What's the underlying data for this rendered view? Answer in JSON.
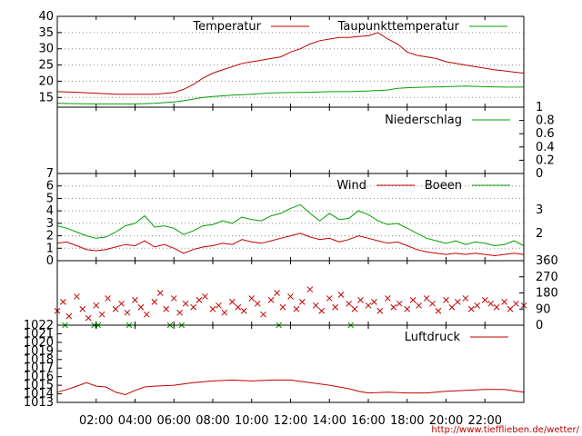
{
  "chart_data": [
    {
      "type": "line",
      "id": "temperature",
      "title": "",
      "ylim": [
        12,
        40
      ],
      "yticks": [
        "15",
        "20",
        "25",
        "30",
        "35",
        "40"
      ],
      "ytick_values": [
        15,
        20,
        25,
        30,
        35,
        40
      ],
      "series": [
        {
          "name": "Temperatur",
          "color": "#c00000",
          "x": [
            0,
            1,
            2,
            3,
            4,
            5,
            6,
            6.5,
            7,
            7.5,
            8,
            8.5,
            9,
            9.5,
            10,
            10.5,
            11,
            11.5,
            12,
            12.5,
            13,
            13.5,
            14,
            14.5,
            15,
            15.5,
            16,
            16.5,
            17,
            17.5,
            18,
            18.5,
            19,
            19.5,
            20,
            20.5,
            21,
            21.5,
            22,
            22.5,
            23,
            23.5,
            24
          ],
          "y": [
            16.8,
            16.6,
            16.3,
            16,
            16,
            16,
            16.5,
            17.5,
            19,
            21,
            22.5,
            23.5,
            24.5,
            25.5,
            26,
            26.5,
            27,
            27.5,
            29,
            30,
            31.5,
            32.5,
            33,
            33.5,
            33.5,
            33.8,
            34,
            35,
            33,
            31.5,
            29,
            28,
            27.5,
            27,
            26,
            25.5,
            25,
            24.5,
            24,
            23.5,
            23.2,
            22.8,
            22.5
          ]
        },
        {
          "name": "Taupunkttemperatur",
          "color": "#00a000",
          "x": [
            0,
            1,
            2,
            3,
            4,
            5,
            6,
            6.5,
            7,
            7.5,
            8,
            9,
            10,
            11,
            12,
            13,
            14,
            15,
            16,
            17,
            17.5,
            18,
            19,
            20,
            21,
            22,
            23,
            24
          ],
          "y": [
            13.2,
            13.1,
            13,
            13,
            13,
            13.2,
            13.6,
            14,
            14.5,
            15,
            15.3,
            15.7,
            16,
            16.4,
            16.5,
            16.6,
            16.8,
            16.8,
            17,
            17.3,
            17.8,
            18,
            18.2,
            18.3,
            18.5,
            18.3,
            18.2,
            18.2
          ]
        }
      ]
    },
    {
      "type": "line",
      "id": "precipitation",
      "title": "",
      "ylim": [
        0,
        1
      ],
      "yticks": [
        "0",
        "0.2",
        "0.4",
        "0.6",
        "0.8",
        "1"
      ],
      "ytick_values": [
        0,
        0.2,
        0.4,
        0.6,
        0.8,
        1
      ],
      "series": [
        {
          "name": "Niederschlag",
          "color": "#00a000",
          "x": [
            0,
            24
          ],
          "y": [
            0,
            0
          ]
        }
      ]
    },
    {
      "type": "line",
      "id": "wind",
      "title": "",
      "ylim": [
        0,
        7
      ],
      "yticks": [
        "0",
        "1",
        "2",
        "3",
        "4",
        "5",
        "6",
        "7"
      ],
      "ytick_values": [
        0,
        1,
        2,
        3,
        4,
        5,
        6,
        7
      ],
      "right_labels": [
        "2",
        "3"
      ],
      "right_label_values": [
        2.2,
        4.1
      ],
      "series": [
        {
          "name": "Wind",
          "color": "#c00000",
          "x": [
            0,
            0.5,
            1,
            1.5,
            2,
            2.5,
            3,
            3.5,
            4,
            4.5,
            5,
            5.5,
            6,
            6.5,
            7,
            7.5,
            8,
            8.5,
            9,
            9.5,
            10,
            10.5,
            11,
            11.5,
            12,
            12.5,
            13,
            13.5,
            14,
            14.5,
            15,
            15.5,
            16,
            16.5,
            17,
            17.5,
            18,
            18.5,
            19,
            19.5,
            20,
            20.5,
            21,
            21.5,
            22,
            22.5,
            23,
            23.5,
            24
          ],
          "y": [
            1.4,
            1.5,
            1.2,
            0.9,
            0.8,
            0.9,
            1.1,
            1.3,
            1.2,
            1.6,
            1.1,
            1.3,
            1.0,
            0.6,
            0.9,
            1.1,
            1.2,
            1.4,
            1.3,
            1.7,
            1.5,
            1.4,
            1.6,
            1.8,
            2.0,
            2.2,
            1.9,
            1.7,
            1.8,
            1.5,
            1.7,
            2.0,
            1.8,
            1.6,
            1.4,
            1.5,
            1.2,
            0.9,
            0.7,
            0.6,
            0.5,
            0.6,
            0.5,
            0.6,
            0.5,
            0.4,
            0.5,
            0.6,
            0.5
          ]
        },
        {
          "name": "Boeen",
          "color": "#00a000",
          "x": [
            0,
            0.5,
            1,
            1.5,
            2,
            2.5,
            3,
            3.5,
            4,
            4.5,
            5,
            5.5,
            6,
            6.5,
            7,
            7.5,
            8,
            8.5,
            9,
            9.5,
            10,
            10.5,
            11,
            11.5,
            12,
            12.5,
            13,
            13.5,
            14,
            14.5,
            15,
            15.5,
            16,
            16.5,
            17,
            17.5,
            18,
            18.5,
            19,
            19.5,
            20,
            20.5,
            21,
            21.5,
            22,
            22.5,
            23,
            23.5,
            24
          ],
          "y": [
            2.8,
            2.6,
            2.3,
            2.0,
            1.8,
            1.9,
            2.3,
            2.8,
            3.0,
            3.6,
            2.7,
            2.8,
            2.6,
            2.1,
            2.4,
            2.8,
            2.9,
            3.2,
            3.0,
            3.5,
            3.3,
            3.2,
            3.6,
            3.8,
            4.2,
            4.5,
            3.8,
            3.2,
            3.8,
            3.3,
            3.4,
            4.0,
            3.7,
            3.2,
            2.9,
            3.0,
            2.6,
            2.2,
            1.8,
            1.6,
            1.4,
            1.6,
            1.3,
            1.5,
            1.4,
            1.2,
            1.3,
            1.6,
            1.2
          ]
        }
      ]
    },
    {
      "type": "scatter",
      "id": "wind-direction",
      "title": "",
      "ylim": [
        0,
        360
      ],
      "yticks": [
        "0",
        "90",
        "180",
        "270",
        "360"
      ],
      "ytick_values": [
        0,
        90,
        180,
        270,
        360
      ],
      "series": [
        {
          "name": "",
          "color": "#c00000",
          "x": [
            0,
            0.3,
            0.6,
            1,
            1.3,
            1.6,
            2,
            2.3,
            2.6,
            3,
            3.3,
            3.6,
            4,
            4.3,
            4.6,
            5,
            5.3,
            5.6,
            6,
            6.3,
            6.6,
            7,
            7.3,
            7.6,
            8,
            8.3,
            8.6,
            9,
            9.3,
            9.6,
            10,
            10.3,
            10.6,
            11,
            11.3,
            11.6,
            12,
            12.3,
            12.6,
            13,
            13.3,
            13.6,
            14,
            14.3,
            14.6,
            15,
            15.3,
            15.6,
            16,
            16.3,
            16.6,
            17,
            17.3,
            17.6,
            18,
            18.3,
            18.6,
            19,
            19.3,
            19.6,
            20,
            20.3,
            20.6,
            21,
            21.3,
            21.6,
            22,
            22.3,
            22.6,
            23,
            23.3,
            23.6,
            24
          ],
          "y": [
            80,
            130,
            50,
            160,
            90,
            40,
            110,
            60,
            150,
            90,
            120,
            70,
            140,
            100,
            60,
            130,
            180,
            90,
            150,
            70,
            120,
            100,
            140,
            160,
            90,
            110,
            70,
            130,
            100,
            80,
            150,
            120,
            60,
            140,
            180,
            100,
            160,
            90,
            130,
            200,
            110,
            80,
            150,
            100,
            170,
            120,
            90,
            140,
            110,
            130,
            80,
            150,
            100,
            120,
            90,
            140,
            110,
            150,
            120,
            80,
            140,
            100,
            130,
            150,
            90,
            110,
            140,
            120,
            100,
            130,
            90,
            120,
            110
          ]
        },
        {
          "name": "",
          "color": "#00a000",
          "x": [
            0.4,
            1.9,
            2.1,
            3.7,
            5.8,
            6.4,
            11.4,
            15.1
          ],
          "y": [
            0,
            0,
            0,
            0,
            0,
            0,
            0,
            0
          ]
        }
      ]
    },
    {
      "type": "line",
      "id": "pressure",
      "title": "",
      "ylim": [
        1013,
        1022
      ],
      "yticks": [
        "1013",
        "1014",
        "1015",
        "1016",
        "1017",
        "1018",
        "1019",
        "1020",
        "1021",
        "1022"
      ],
      "ytick_values": [
        1013,
        1014,
        1015,
        1016,
        1017,
        1018,
        1019,
        1020,
        1021,
        1022
      ],
      "series": [
        {
          "name": "Luftdruck",
          "color": "#c00000",
          "x": [
            0,
            0.5,
            1,
            1.5,
            2,
            2.5,
            3,
            3.5,
            4,
            4.5,
            5,
            6,
            7,
            8,
            9,
            10,
            11,
            12,
            13,
            14,
            15,
            15.5,
            16,
            17,
            18,
            19,
            20,
            21,
            22,
            23,
            24
          ],
          "y": [
            1014.2,
            1014.5,
            1014.9,
            1015.3,
            1014.9,
            1014.8,
            1014.2,
            1013.9,
            1014.4,
            1014.8,
            1014.9,
            1015.0,
            1015.3,
            1015.5,
            1015.6,
            1015.5,
            1015.6,
            1015.6,
            1015.3,
            1015.0,
            1014.6,
            1014.3,
            1014.1,
            1014.2,
            1014.1,
            1014.1,
            1014.3,
            1014.4,
            1014.5,
            1014.5,
            1014.2
          ]
        }
      ]
    }
  ],
  "x_axis": {
    "range": [
      0,
      24
    ],
    "ticks": [
      "02:00",
      "04:00",
      "06:00",
      "08:00",
      "10:00",
      "12:00",
      "14:00",
      "16:00",
      "18:00",
      "20:00",
      "22:00"
    ],
    "tick_values": [
      2,
      4,
      6,
      8,
      10,
      12,
      14,
      16,
      18,
      20,
      22
    ]
  },
  "credit": "http://www.tiefflieben.de/wetter/"
}
